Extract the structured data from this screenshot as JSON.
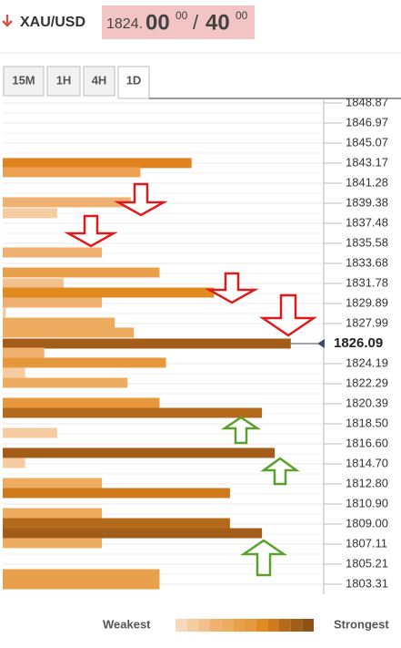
{
  "header": {
    "symbol": "XAU/USD",
    "bid_main": "1824.",
    "bid_big": "00",
    "bid_sup": "00",
    "separator": "/",
    "ask_big": "40",
    "ask_sup": "00"
  },
  "tabs": {
    "items": [
      "15M",
      "1H",
      "4H",
      "1D"
    ],
    "active": 3
  },
  "chart_data": {
    "type": "bar",
    "orientation": "horizontal",
    "ylim": [
      1802.36,
      1849.3
    ],
    "xlim": [
      0,
      100
    ],
    "yticks": [
      1848.87,
      1846.97,
      1845.07,
      1843.17,
      1841.28,
      1839.38,
      1837.48,
      1835.58,
      1833.68,
      1831.78,
      1829.89,
      1827.99,
      1824.19,
      1822.29,
      1820.39,
      {
        "value": 1818.5,
        "label": "1818.50"
      },
      {
        "value": 1816.6,
        "label": "1816.60"
      },
      {
        "value": 1814.7,
        "label": "1814.70"
      },
      {
        "value": 1812.8,
        "label": "1812.80"
      },
      {
        "value": 1810.9,
        "label": "1810.90"
      },
      {
        "value": 1809,
        "label": "1809.00"
      },
      1807.11,
      1805.21,
      1803.31
    ],
    "current_price": 1826.09,
    "grid": true,
    "levels": [
      1843.18,
      1842.32,
      1839.47,
      1838.43,
      1834.72,
      1832.82,
      1831.79,
      1830.92,
      1829.97,
      1829.03,
      1828.07,
      1827.13,
      1826.09,
      1825.23,
      1824.28,
      1823.33,
      1822.38,
      1820.48,
      1819.53,
      1817.63,
      1815.74,
      1814.79,
      1812.89,
      1811.94,
      1810.04,
      1809.09,
      1808.14,
      1807.2,
      1804.26,
      1803.31
    ],
    "values": [
      59,
      43,
      40,
      17,
      31,
      49,
      19,
      66,
      31,
      1,
      35,
      41,
      90,
      13,
      51,
      7,
      39,
      49,
      81,
      17,
      85,
      7,
      31,
      71,
      31,
      71,
      81,
      31,
      49,
      49
    ],
    "colors": [
      "#e0821e",
      "#eda050",
      "#f0b070",
      "#f5cba0",
      "#f0b070",
      "#eaa04a",
      "#f2c08c",
      "#e08a20",
      "#f0b070",
      "#f5cba0",
      "#eeac60",
      "#eeac60",
      "#a35d18",
      "#f0b070",
      "#e8983c",
      "#f5cba0",
      "#eeac60",
      "#e8983c",
      "#b46a1a",
      "#f5cba0",
      "#a35d18",
      "#f5cba0",
      "#eeac60",
      "#d07a1c",
      "#eeac60",
      "#b46a1a",
      "#a35d18",
      "#eeac60",
      "#e8a04a",
      "#e8a04a"
    ],
    "legend": {
      "low": "Weakest",
      "high": "Strongest",
      "scale_colors": [
        "#f8d8bc",
        "#f5cba0",
        "#f2c08c",
        "#f0b070",
        "#eeac60",
        "#eaa04a",
        "#e8983c",
        "#e08a20",
        "#d07a1c",
        "#b46a1a",
        "#a35d18",
        "#8e5014"
      ]
    }
  }
}
